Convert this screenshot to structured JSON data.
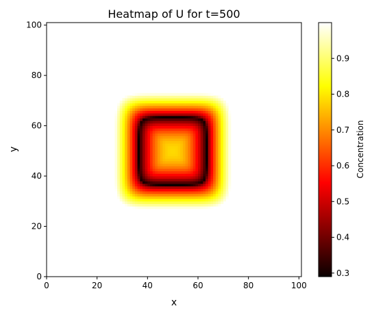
{
  "chart_data": {
    "type": "heatmap",
    "title": "Heatmap of U for t=500",
    "xlabel": "x",
    "ylabel": "y",
    "xlim": [
      0,
      101
    ],
    "ylim": [
      0,
      101
    ],
    "grid_size": [
      101,
      101
    ],
    "x_ticks": [
      "0",
      "20",
      "40",
      "60",
      "80",
      "100"
    ],
    "y_ticks": [
      "0",
      "20",
      "40",
      "60",
      "80",
      "100"
    ],
    "colormap": "hot",
    "colorbar": {
      "label": "Concentration",
      "range": [
        0.29,
        1.0
      ],
      "ticks": [
        "0.3",
        "0.4",
        "0.5",
        "0.6",
        "0.7",
        "0.8",
        "0.9"
      ]
    },
    "pattern": {
      "shape": "rounded-square ring",
      "center": [
        50,
        50
      ],
      "background_value": 1.0,
      "center_value": 0.78,
      "ring_min_value": 0.29,
      "ring_inner_extent": [
        38,
        62
      ],
      "ring_outer_extent": [
        35,
        65
      ]
    }
  }
}
